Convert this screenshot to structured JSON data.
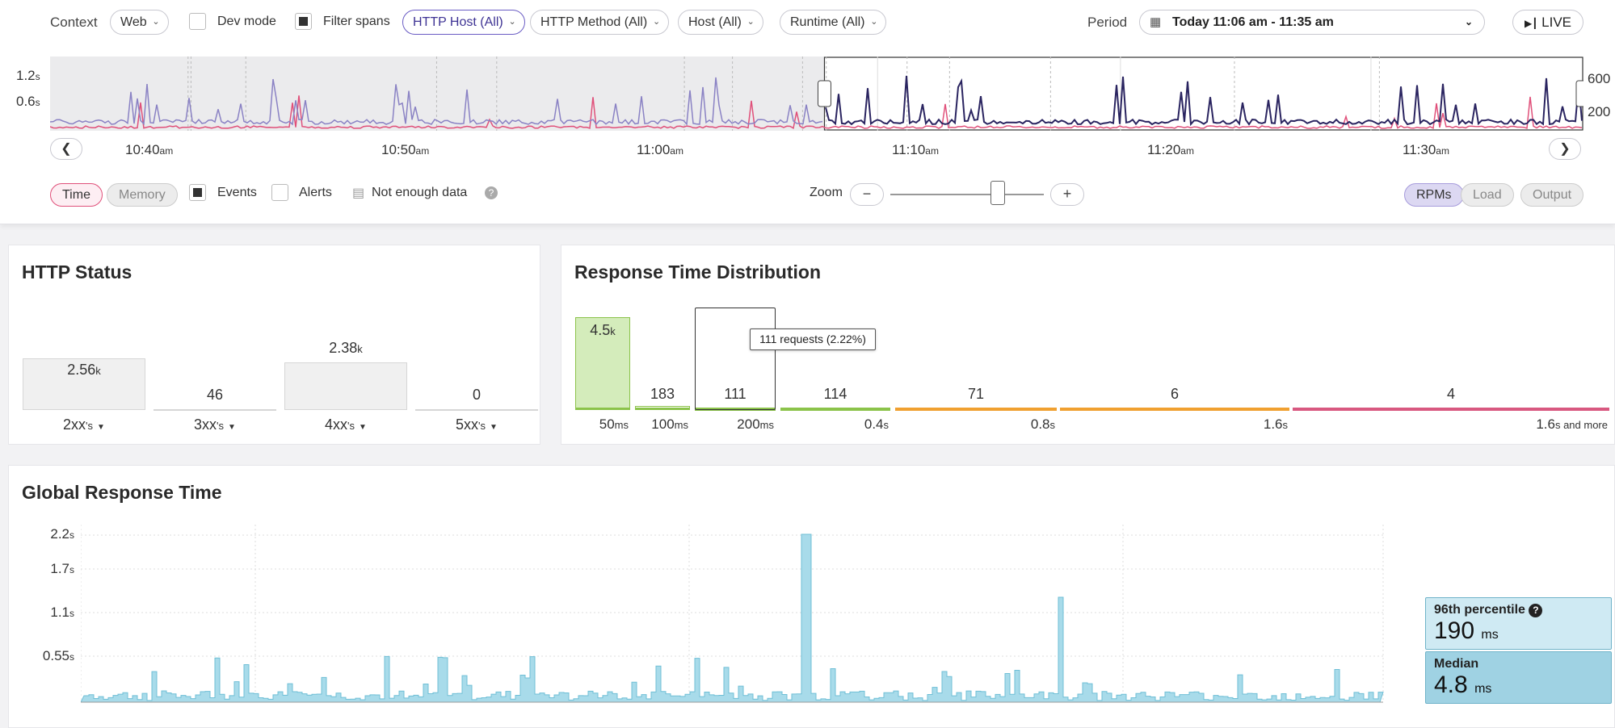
{
  "filters": {
    "context_label": "Context",
    "context_value": "Web",
    "dev_mode_label": "Dev mode",
    "filter_spans_label": "Filter spans",
    "http_host": "HTTP Host (All)",
    "http_method": "HTTP Method (All)",
    "host": "Host (All)",
    "runtime": "Runtime (All)",
    "period_label": "Period",
    "period_value": "Today 11:06 am - 11:35 am",
    "live_label": "LIVE"
  },
  "timeline": {
    "y_left": [
      {
        "v": "1.2",
        "u": "s"
      },
      {
        "v": "0.6",
        "u": "s"
      }
    ],
    "y_right": [
      "600",
      "200"
    ],
    "ticks": [
      {
        "v": "10:40",
        "u": "am"
      },
      {
        "v": "10:50",
        "u": "am"
      },
      {
        "v": "11:00",
        "u": "am"
      },
      {
        "v": "11:10",
        "u": "am"
      },
      {
        "v": "11:20",
        "u": "am"
      },
      {
        "v": "11:30",
        "u": "am"
      }
    ],
    "prev_icon": "chevron-left-icon",
    "next_icon": "chevron-right-icon",
    "selection_fraction": [
      0.505,
      1.0
    ]
  },
  "controls": {
    "time_label": "Time",
    "memory_label": "Memory",
    "events_label": "Events",
    "alerts_label": "Alerts",
    "not_enough_label": "Not enough data",
    "zoom_label": "Zoom",
    "zoom_minus": "−",
    "zoom_plus": "+",
    "zoom_level": 0.7,
    "rpms_label": "RPMs",
    "load_label": "Load",
    "output_label": "Output"
  },
  "http_status": {
    "title": "HTTP Status",
    "bars": [
      {
        "label": "2.56",
        "unit": "k",
        "cat": "2xx",
        "suffix": "'s",
        "value": 2560
      },
      {
        "label": "46",
        "unit": "",
        "cat": "3xx",
        "suffix": "'s",
        "value": 46
      },
      {
        "label": "2.38",
        "unit": "k",
        "cat": "4xx",
        "suffix": "'s",
        "value": 2380
      },
      {
        "label": "0",
        "unit": "",
        "cat": "5xx",
        "suffix": "'s",
        "value": 0
      }
    ]
  },
  "response_dist": {
    "title": "Response Time Distribution",
    "tooltip": "111 requests (2.22%)",
    "buckets": [
      {
        "count": "4.5",
        "cunit": "k",
        "axis": "50",
        "aunit": "ms",
        "value": 4500,
        "color": "#8bc34a"
      },
      {
        "count": "183",
        "cunit": "",
        "axis": "100",
        "aunit": "ms",
        "value": 183,
        "color": "#8bc34a"
      },
      {
        "count": "111",
        "cunit": "",
        "axis": "200",
        "aunit": "ms",
        "value": 111,
        "color": "#8bc34a"
      },
      {
        "count": "114",
        "cunit": "",
        "axis": "0.4",
        "aunit": "s",
        "value": 114,
        "color": "#8bc34a"
      },
      {
        "count": "71",
        "cunit": "",
        "axis": "0.8",
        "aunit": "s",
        "value": 71,
        "color": "#f0a030"
      },
      {
        "count": "6",
        "cunit": "",
        "axis": "1.6",
        "aunit": "s",
        "value": 6,
        "color": "#f0a030"
      },
      {
        "count": "4",
        "cunit": "",
        "axis": "1.6",
        "aunit": "s and more",
        "value": 4,
        "color": "#d85880"
      }
    ]
  },
  "global_response": {
    "title": "Global Response Time",
    "y_ticks": [
      {
        "v": "2.2",
        "u": "s"
      },
      {
        "v": "1.7",
        "u": "s"
      },
      {
        "v": "1.1",
        "u": "s"
      },
      {
        "v": "0.55",
        "u": "s"
      }
    ],
    "p96_title": "96th percentile",
    "p96_value": "190",
    "p96_unit": "ms",
    "median_title": "Median",
    "median_value": "4.8",
    "median_unit": "ms",
    "help_icon": "question-circle-icon"
  },
  "colors": {
    "accent_purple": "#6a5cc4",
    "time_pink": "#e0507a",
    "navy_line": "#2a2460",
    "bar_blue": "#a8dbea",
    "bar_blue_stroke": "#6fbfd6"
  }
}
